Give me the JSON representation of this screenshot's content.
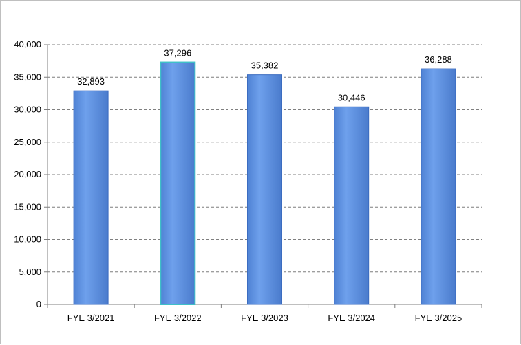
{
  "chart_data": {
    "type": "bar",
    "categories": [
      "FYE 3/2021",
      "FYE 3/2022",
      "FYE 3/2023",
      "FYE 3/2024",
      "FYE 3/2025"
    ],
    "values": [
      32893,
      37296,
      35382,
      30446,
      36288
    ],
    "value_labels": [
      "32,893",
      "37,296",
      "35,382",
      "30,446",
      "36,288"
    ],
    "title": "",
    "xlabel": "",
    "ylabel": "",
    "ylim": [
      0,
      40000
    ],
    "yticks": [
      0,
      5000,
      10000,
      15000,
      20000,
      25000,
      30000,
      35000,
      40000
    ],
    "ytick_labels": [
      "0",
      "5,000",
      "10,000",
      "15,000",
      "20,000",
      "25,000",
      "30,000",
      "35,000",
      "40,000"
    ],
    "grid": true,
    "legend": "none",
    "bar_color": "#5b8fe0",
    "highlight_bar_color": "#3fc0c8"
  }
}
